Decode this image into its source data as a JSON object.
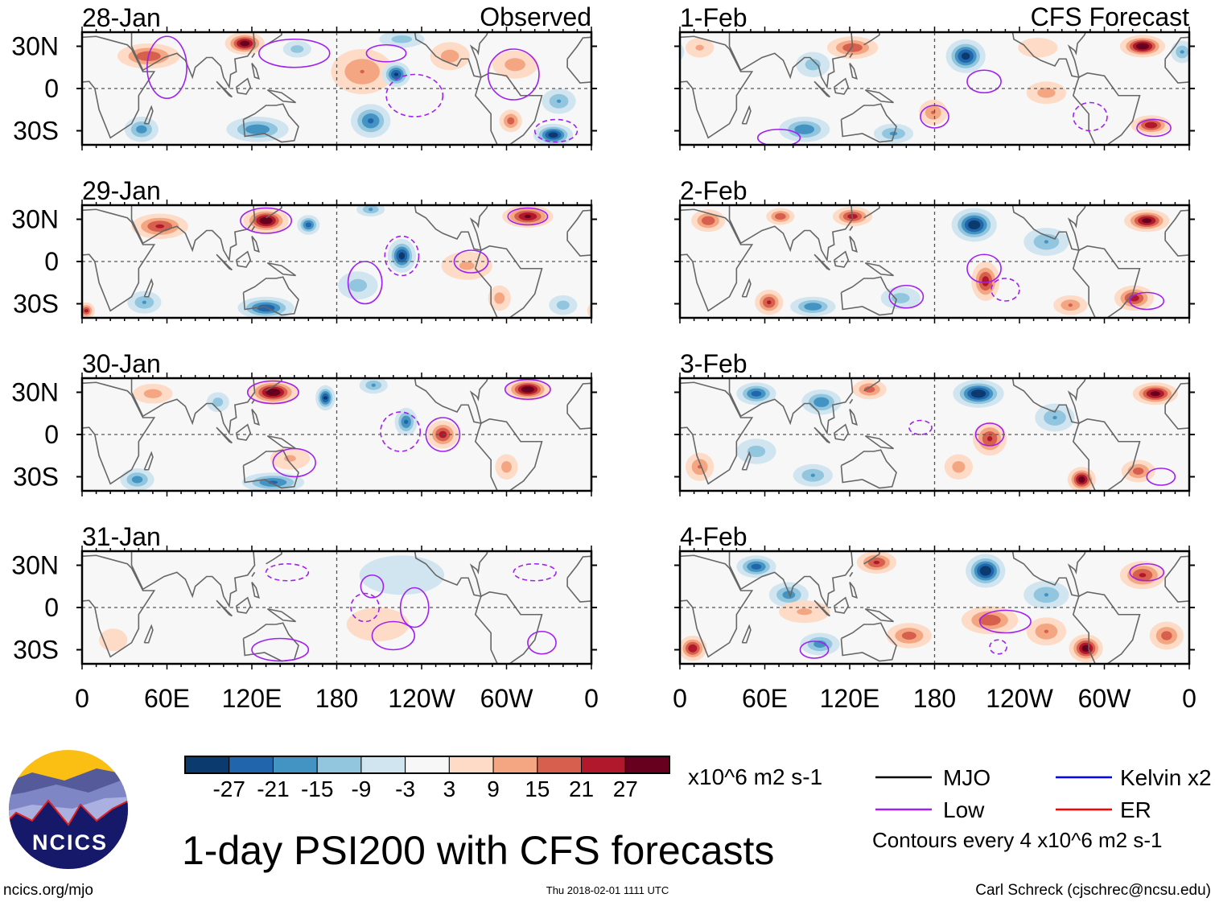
{
  "figure": {
    "title": "1-day PSI200 with CFS forecasts",
    "left_header": "Observed",
    "right_header": "CFS Forecast",
    "units": "x10^6 m2 s-1",
    "contour_note": "Contours every 4 x10^6 m2 s-1",
    "website": "ncics.org/mjo",
    "timestamp": "Thu 2018-02-01 1111 UTC",
    "author": "Carl Schreck (cjschrec@ncsu.edu)",
    "logo_text": "NCICS"
  },
  "legend": {
    "lines": [
      {
        "label": "MJO",
        "color": "#000000"
      },
      {
        "label": "Kelvin x2",
        "color": "#0000ff"
      },
      {
        "label": "Low",
        "color": "#a020f0"
      },
      {
        "label": "ER",
        "color": "#ff0000"
      }
    ]
  },
  "colorbar": {
    "labels": [
      "-27",
      "-21",
      "-15",
      "-9",
      "-3",
      "3",
      "9",
      "15",
      "21",
      "27"
    ],
    "colors": [
      "#0b3a6e",
      "#2166ac",
      "#4393c3",
      "#92c5de",
      "#d1e5f0",
      "#f7f7f7",
      "#fddbc7",
      "#f4a582",
      "#d6604d",
      "#b2182b",
      "#67001f"
    ]
  },
  "axes": {
    "y_ticks": [
      "30N",
      "0",
      "30S"
    ],
    "x_ticks": [
      "0",
      "60E",
      "120E",
      "180",
      "120W",
      "60W",
      "0"
    ]
  },
  "chart_data": {
    "type": "heatmap",
    "variable": "PSI200 anomaly",
    "lat_range": [
      -40,
      40
    ],
    "lon_range": [
      0,
      360
    ],
    "observed": [
      {
        "date": "28-Jan",
        "features": [
          [
            47,
            23,
            20,
            22,
            9
          ],
          [
            115,
            32,
            31,
            14,
            8
          ],
          [
            198,
            12,
            15,
            22,
            16
          ],
          [
            222,
            10,
            -28,
            10,
            9
          ],
          [
            204,
            -23,
            -22,
            14,
            12
          ],
          [
            124,
            -29,
            -20,
            22,
            9
          ],
          [
            42,
            -29,
            -18,
            12,
            9
          ],
          [
            333,
            -33,
            -31,
            14,
            8
          ],
          [
            306,
            17,
            12,
            16,
            10
          ],
          [
            303,
            -23,
            18,
            8,
            8
          ],
          [
            337,
            -9,
            -15,
            12,
            9
          ],
          [
            260,
            23,
            12,
            14,
            10
          ],
          [
            226,
            35,
            -12,
            16,
            6
          ],
          [
            152,
            28,
            -12,
            10,
            6
          ]
        ],
        "contours": [
          [
            60,
            15,
            14,
            22,
            0
          ],
          [
            150,
            25,
            25,
            10,
            0
          ],
          [
            215,
            25,
            14,
            6,
            0
          ],
          [
            235,
            -5,
            20,
            15,
            1
          ],
          [
            305,
            10,
            18,
            18,
            0
          ],
          [
            335,
            -30,
            15,
            8,
            1
          ]
        ]
      },
      {
        "date": "29-Jan",
        "features": [
          [
            55,
            25,
            22,
            20,
            9
          ],
          [
            130,
            29,
            33,
            16,
            9
          ],
          [
            160,
            26,
            -24,
            8,
            7
          ],
          [
            226,
            4,
            -30,
            10,
            12
          ],
          [
            315,
            32,
            28,
            18,
            8
          ],
          [
            130,
            -33,
            -26,
            20,
            8
          ],
          [
            44,
            -29,
            -15,
            12,
            8
          ],
          [
            3,
            -35,
            22,
            6,
            6
          ],
          [
            272,
            -3,
            10,
            18,
            10
          ],
          [
            204,
            37,
            -15,
            10,
            5
          ],
          [
            295,
            -26,
            12,
            8,
            9
          ],
          [
            340,
            -31,
            -12,
            10,
            7
          ],
          [
            195,
            -17,
            -12,
            14,
            10
          ]
        ],
        "contours": [
          [
            130,
            29,
            18,
            9,
            0
          ],
          [
            226,
            4,
            12,
            14,
            1
          ],
          [
            275,
            0,
            12,
            8,
            0
          ],
          [
            315,
            32,
            14,
            6,
            0
          ],
          [
            200,
            -15,
            12,
            15,
            0
          ]
        ]
      },
      {
        "date": "30-Jan",
        "features": [
          [
            135,
            30,
            33,
            18,
            9
          ],
          [
            172,
            26,
            -28,
            7,
            9
          ],
          [
            315,
            32,
            33,
            16,
            8
          ],
          [
            255,
            0,
            24,
            11,
            10
          ],
          [
            229,
            9,
            -22,
            8,
            10
          ],
          [
            206,
            35,
            -15,
            10,
            6
          ],
          [
            50,
            29,
            12,
            14,
            7
          ],
          [
            96,
            23,
            -12,
            8,
            7
          ],
          [
            135,
            -34,
            -22,
            22,
            7
          ],
          [
            39,
            -32,
            -18,
            12,
            8
          ],
          [
            300,
            -23,
            12,
            8,
            9
          ],
          [
            147,
            -17,
            10,
            14,
            8
          ]
        ],
        "contours": [
          [
            135,
            30,
            18,
            8,
            0
          ],
          [
            315,
            32,
            16,
            7,
            0
          ],
          [
            255,
            0,
            12,
            12,
            0
          ],
          [
            225,
            2,
            14,
            14,
            1
          ],
          [
            150,
            -20,
            15,
            10,
            0
          ]
        ]
      },
      {
        "date": "31-Jan",
        "features": [
          [
            226,
            23,
            -7,
            30,
            14
          ],
          [
            209,
            -12,
            8,
            22,
            12
          ],
          [
            22,
            -23,
            8,
            10,
            8
          ]
        ],
        "contours": [
          [
            145,
            25,
            15,
            6,
            1
          ],
          [
            205,
            15,
            8,
            8,
            0
          ],
          [
            235,
            0,
            10,
            14,
            0
          ],
          [
            220,
            -20,
            15,
            10,
            0
          ],
          [
            140,
            -30,
            20,
            8,
            0
          ],
          [
            320,
            25,
            15,
            6,
            1
          ],
          [
            325,
            -25,
            10,
            8,
            0
          ],
          [
            200,
            0,
            10,
            10,
            1
          ]
        ]
      }
    ],
    "forecast": [
      {
        "date": "1-Feb",
        "features": [
          [
            122,
            29,
            20,
            18,
            8
          ],
          [
            202,
            23,
            -30,
            14,
            12
          ],
          [
            327,
            30,
            33,
            16,
            8
          ],
          [
            333,
            -26,
            26,
            14,
            7
          ],
          [
            88,
            -29,
            -20,
            18,
            9
          ],
          [
            151,
            -32,
            -16,
            14,
            7
          ],
          [
            179,
            -17,
            15,
            10,
            9
          ],
          [
            259,
            -3,
            12,
            14,
            8
          ],
          [
            94,
            17,
            -12,
            12,
            9
          ],
          [
            355,
            26,
            -15,
            8,
            8
          ],
          [
            14,
            29,
            10,
            10,
            7
          ],
          [
            253,
            29,
            8,
            14,
            7
          ]
        ],
        "contours": [
          [
            215,
            5,
            12,
            8,
            0
          ],
          [
            335,
            -28,
            12,
            6,
            0
          ],
          [
            180,
            -20,
            10,
            8,
            0
          ],
          [
            70,
            -35,
            15,
            6,
            0
          ],
          [
            290,
            -20,
            12,
            10,
            1
          ]
        ]
      },
      {
        "date": "2-Feb",
        "features": [
          [
            20,
            29,
            20,
            12,
            8
          ],
          [
            71,
            32,
            20,
            10,
            6
          ],
          [
            122,
            32,
            24,
            14,
            7
          ],
          [
            208,
            26,
            -32,
            16,
            12
          ],
          [
            330,
            29,
            30,
            16,
            8
          ],
          [
            216,
            -14,
            24,
            10,
            14
          ],
          [
            321,
            -26,
            24,
            14,
            9
          ],
          [
            94,
            -32,
            -20,
            16,
            7
          ],
          [
            63,
            -29,
            22,
            10,
            9
          ],
          [
            259,
            14,
            -15,
            16,
            10
          ],
          [
            276,
            -31,
            15,
            12,
            7
          ],
          [
            156,
            -26,
            -12,
            14,
            8
          ]
        ],
        "contours": [
          [
            215,
            -5,
            12,
            10,
            0
          ],
          [
            230,
            -20,
            10,
            8,
            1
          ],
          [
            330,
            -28,
            12,
            6,
            0
          ],
          [
            160,
            -25,
            12,
            8,
            0
          ]
        ]
      },
      {
        "date": "3-Feb",
        "features": [
          [
            54,
            29,
            -24,
            14,
            8
          ],
          [
            100,
            23,
            -20,
            14,
            9
          ],
          [
            134,
            32,
            18,
            12,
            7
          ],
          [
            211,
            29,
            -33,
            18,
            10
          ],
          [
            336,
            29,
            30,
            16,
            8
          ],
          [
            219,
            -3,
            22,
            12,
            12
          ],
          [
            284,
            -32,
            31,
            10,
            9
          ],
          [
            324,
            -26,
            18,
            12,
            8
          ],
          [
            94,
            -29,
            -15,
            14,
            8
          ],
          [
            54,
            -12,
            -12,
            14,
            9
          ],
          [
            14,
            -23,
            15,
            10,
            10
          ],
          [
            265,
            12,
            -15,
            14,
            10
          ],
          [
            197,
            -23,
            12,
            10,
            9
          ]
        ],
        "contours": [
          [
            219,
            0,
            10,
            8,
            0
          ],
          [
            170,
            5,
            8,
            5,
            1
          ],
          [
            340,
            -30,
            10,
            6,
            0
          ]
        ]
      },
      {
        "date": "4-Feb",
        "features": [
          [
            54,
            29,
            -24,
            14,
            8
          ],
          [
            77,
            9,
            -18,
            14,
            9
          ],
          [
            139,
            32,
            22,
            14,
            8
          ],
          [
            216,
            26,
            -33,
            14,
            12
          ],
          [
            327,
            23,
            22,
            16,
            10
          ],
          [
            219,
            -9,
            20,
            20,
            10
          ],
          [
            287,
            -29,
            31,
            12,
            10
          ],
          [
            9,
            -29,
            26,
            10,
            9
          ],
          [
            99,
            -26,
            -18,
            14,
            8
          ],
          [
            162,
            -20,
            18,
            16,
            9
          ],
          [
            344,
            -20,
            18,
            12,
            10
          ],
          [
            259,
            9,
            -15,
            16,
            10
          ],
          [
            259,
            -17,
            15,
            14,
            10
          ],
          [
            88,
            -3,
            10,
            18,
            8
          ]
        ],
        "contours": [
          [
            230,
            -10,
            18,
            8,
            0
          ],
          [
            330,
            25,
            12,
            6,
            0
          ],
          [
            225,
            -28,
            6,
            5,
            1
          ],
          [
            95,
            -30,
            10,
            6,
            0
          ]
        ]
      }
    ]
  }
}
